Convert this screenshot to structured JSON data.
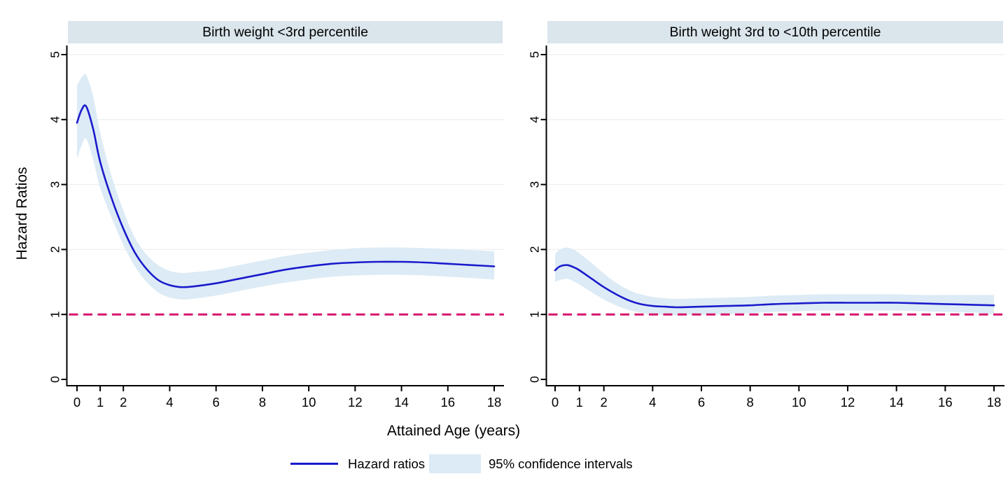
{
  "figure": {
    "panels": [
      {
        "title": "Birth weight <3rd percentile"
      },
      {
        "title": "Birth weight 3rd to <10th percentile"
      }
    ],
    "xlabel": "Attained Age (years)",
    "ylabel": "Hazard Ratios",
    "legend": {
      "position": "bottom",
      "line_label": "Hazard ratios",
      "area_label": "95% confidence intervals"
    }
  },
  "colors": {
    "line": "#1a1acc",
    "ci_band": "#dcebf5",
    "reference": "#d7156d",
    "header_bg": "#dae5ec",
    "grid": "#edf0f1",
    "axis": "#000000"
  },
  "chart_data": [
    {
      "type": "line",
      "title": "Birth weight <3rd percentile",
      "xlabel": "Attained Age (years)",
      "ylabel": "Hazard Ratios",
      "xlim": [
        0,
        18.5
      ],
      "ylim": [
        0,
        5.2
      ],
      "xticks": [
        0,
        1,
        2,
        4,
        6,
        8,
        10,
        12,
        14,
        16,
        18
      ],
      "yticks": [
        0,
        1,
        2,
        3,
        4,
        5
      ],
      "grid": "horizontal",
      "reference_line_y": 1,
      "x": [
        0,
        0.2,
        0.4,
        0.7,
        1,
        1.5,
        2,
        2.5,
        3,
        3.5,
        4,
        4.5,
        5,
        6,
        7,
        8,
        9,
        10,
        11,
        12,
        13,
        14,
        15,
        16,
        17,
        18
      ],
      "series": [
        {
          "name": "Hazard ratios",
          "values": [
            3.95,
            4.15,
            4.2,
            3.85,
            3.35,
            2.78,
            2.32,
            1.95,
            1.7,
            1.53,
            1.45,
            1.42,
            1.43,
            1.48,
            1.55,
            1.62,
            1.69,
            1.74,
            1.78,
            1.8,
            1.81,
            1.81,
            1.8,
            1.78,
            1.76,
            1.74
          ]
        },
        {
          "name": "95% CI upper",
          "values": [
            4.52,
            4.65,
            4.68,
            4.35,
            3.8,
            3.12,
            2.6,
            2.18,
            1.92,
            1.76,
            1.67,
            1.64,
            1.65,
            1.69,
            1.76,
            1.83,
            1.9,
            1.95,
            1.99,
            2.02,
            2.03,
            2.03,
            2.02,
            2.01,
            1.99,
            1.97
          ]
        },
        {
          "name": "95% CI lower",
          "values": [
            3.4,
            3.6,
            3.7,
            3.38,
            2.95,
            2.48,
            2.07,
            1.74,
            1.5,
            1.34,
            1.26,
            1.23,
            1.24,
            1.29,
            1.36,
            1.43,
            1.49,
            1.54,
            1.58,
            1.6,
            1.61,
            1.61,
            1.6,
            1.58,
            1.56,
            1.54
          ]
        }
      ]
    },
    {
      "type": "line",
      "title": "Birth weight 3rd to <10th percentile",
      "xlabel": "Attained Age (years)",
      "ylabel": "Hazard Ratios",
      "xlim": [
        0,
        18.5
      ],
      "ylim": [
        0,
        5.2
      ],
      "xticks": [
        0,
        1,
        2,
        4,
        6,
        8,
        10,
        12,
        14,
        16,
        18
      ],
      "yticks": [
        0,
        1,
        2,
        3,
        4,
        5
      ],
      "grid": "horizontal",
      "reference_line_y": 1,
      "x": [
        0,
        0.2,
        0.5,
        0.8,
        1,
        1.5,
        2,
        2.5,
        3,
        3.5,
        4,
        4.5,
        5,
        6,
        7,
        8,
        9,
        10,
        11,
        12,
        13,
        14,
        15,
        16,
        17,
        18
      ],
      "series": [
        {
          "name": "Hazard ratios",
          "values": [
            1.68,
            1.74,
            1.76,
            1.72,
            1.68,
            1.55,
            1.42,
            1.31,
            1.22,
            1.16,
            1.13,
            1.12,
            1.11,
            1.12,
            1.13,
            1.14,
            1.16,
            1.17,
            1.18,
            1.18,
            1.18,
            1.18,
            1.17,
            1.16,
            1.15,
            1.14
          ]
        },
        {
          "name": "95% CI upper",
          "values": [
            1.93,
            2.0,
            2.03,
            1.99,
            1.94,
            1.79,
            1.63,
            1.49,
            1.38,
            1.31,
            1.27,
            1.25,
            1.24,
            1.25,
            1.26,
            1.27,
            1.29,
            1.3,
            1.31,
            1.31,
            1.31,
            1.31,
            1.3,
            1.3,
            1.3,
            1.3
          ]
        },
        {
          "name": "95% CI lower",
          "values": [
            1.5,
            1.53,
            1.55,
            1.5,
            1.46,
            1.34,
            1.23,
            1.14,
            1.07,
            1.03,
            1.0,
            0.99,
            0.99,
            1.0,
            1.01,
            1.02,
            1.04,
            1.05,
            1.06,
            1.06,
            1.06,
            1.06,
            1.05,
            1.04,
            1.03,
            1.01
          ]
        }
      ]
    }
  ]
}
